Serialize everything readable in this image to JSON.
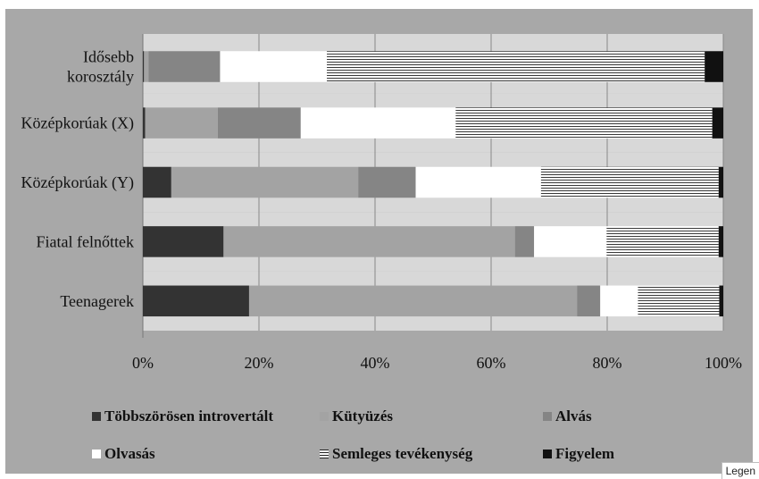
{
  "chart_data": {
    "type": "bar",
    "orientation": "horizontal",
    "stacked": true,
    "percent": true,
    "categories": [
      "Teenagerek",
      "Fiatal felnőttek",
      "Középkorúak (Y)",
      "Középkorúak (X)",
      [
        "Idősebb",
        "korosztály"
      ]
    ],
    "series": [
      {
        "name": "Többszörösen introvertált",
        "color": "#333333",
        "pattern": "solid",
        "values": [
          18.3,
          13.9,
          4.9,
          0.4,
          0.2
        ]
      },
      {
        "name": "Kütyüzés",
        "color": "#a3a3a3",
        "pattern": "solid",
        "values": [
          56.5,
          50.2,
          32.2,
          12.5,
          0.8
        ]
      },
      {
        "name": "Alvás",
        "color": "#858585",
        "pattern": "solid",
        "values": [
          4.0,
          3.3,
          9.9,
          14.3,
          12.3
        ]
      },
      {
        "name": "Olvasás",
        "color": "#ffffff",
        "pattern": "solid",
        "values": [
          6.5,
          12.5,
          21.6,
          26.7,
          18.4
        ]
      },
      {
        "name": "Semleges tevékenység",
        "color": "#ffffff",
        "pattern": "horizontal-lines",
        "values": [
          14.0,
          19.3,
          30.6,
          44.2,
          65.1
        ]
      },
      {
        "name": "Figyelem",
        "color": "#111111",
        "pattern": "solid",
        "values": [
          0.7,
          0.8,
          0.8,
          1.9,
          3.2
        ]
      }
    ],
    "xlim": [
      0,
      100
    ],
    "x_ticks": [
      "0%",
      "20%",
      "40%",
      "60%",
      "80%",
      "100%"
    ],
    "grid": true,
    "legend_position": "bottom"
  },
  "colors": {
    "plot_background": "#d8d8d8",
    "chart_background": "#a8a8a8",
    "band_light": "#d8d8d8",
    "gridline": "#888888"
  },
  "legend_tag": "Legen"
}
